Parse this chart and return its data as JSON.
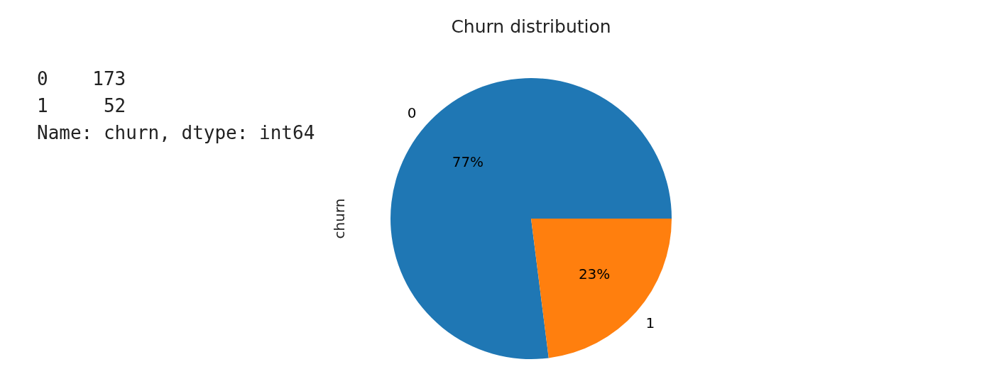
{
  "chart_data": {
    "type": "pie",
    "title": "Churn distribution",
    "ylabel": "churn",
    "categories": [
      "0",
      "1"
    ],
    "values": [
      77,
      23
    ],
    "colors": [
      "#1f77b4",
      "#ff7f0e"
    ],
    "value_labels": [
      "77%",
      "23%"
    ],
    "annotations": [
      "0    173",
      "1     52",
      "Name: churn, dtype: int64"
    ]
  }
}
